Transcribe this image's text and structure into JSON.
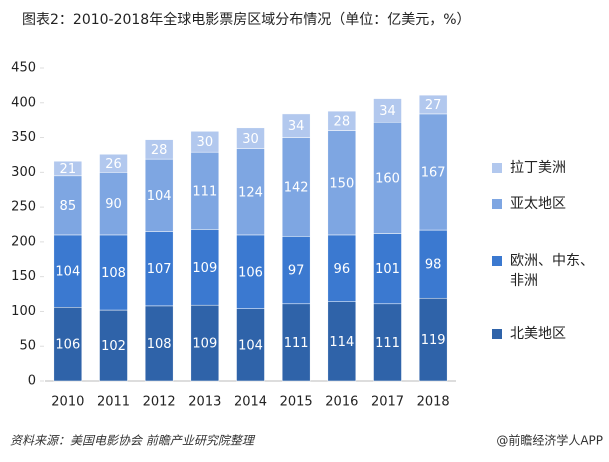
{
  "chart_data": {
    "type": "stacked_bar",
    "title": "图表2：2010-2018年全球电影票房区域分布情况（单位：亿美元，%）",
    "source": "资料来源：美国电影协会 前瞻产业研究院整理",
    "credit": "@前瞻经济学人APP",
    "categories": [
      "2010",
      "2011",
      "2012",
      "2013",
      "2014",
      "2015",
      "2016",
      "2017",
      "2018"
    ],
    "series": [
      {
        "name": "北美地区",
        "color": "#2f63a9",
        "values": [
          106,
          102,
          108,
          109,
          104,
          111,
          114,
          111,
          119
        ]
      },
      {
        "name": "欧洲、中东、非洲",
        "color": "#3b79d0",
        "values": [
          104,
          108,
          107,
          109,
          106,
          97,
          96,
          101,
          98
        ]
      },
      {
        "name": "亚太地区",
        "color": "#7ea6e2",
        "values": [
          85,
          90,
          104,
          111,
          124,
          142,
          150,
          160,
          167
        ]
      },
      {
        "name": "拉丁美洲",
        "color": "#b2c8ee",
        "values": [
          21,
          26,
          28,
          30,
          30,
          34,
          28,
          34,
          27
        ]
      }
    ],
    "ylim": [
      0,
      450
    ],
    "yticks": [
      0,
      50,
      100,
      150,
      200,
      250,
      300,
      350,
      400,
      450
    ]
  }
}
